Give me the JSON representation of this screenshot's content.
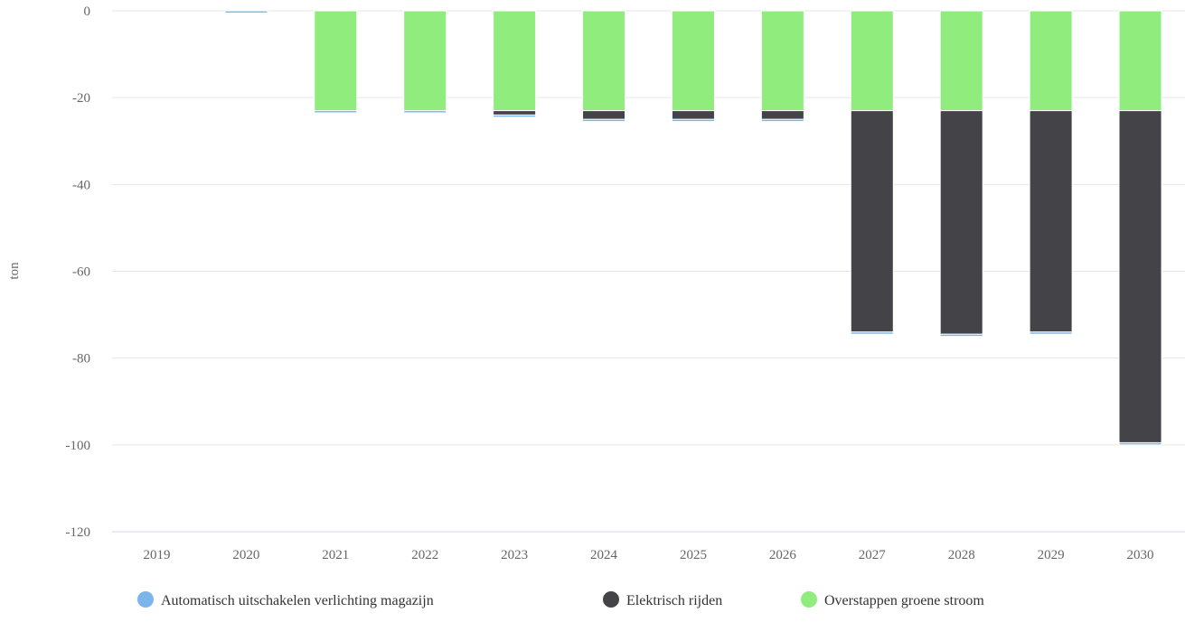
{
  "chart_data": {
    "type": "bar",
    "stacked": true,
    "categories": [
      "2019",
      "2020",
      "2021",
      "2022",
      "2023",
      "2024",
      "2025",
      "2026",
      "2027",
      "2028",
      "2029",
      "2030"
    ],
    "series": [
      {
        "name": "Overstappen groene stroom",
        "color": "#90ed7d",
        "values": [
          0,
          0,
          -23,
          -23,
          -23,
          -23,
          -23,
          -23,
          -23,
          -23,
          -23,
          -23
        ]
      },
      {
        "name": "Elektrisch rijden",
        "color": "#434348",
        "values": [
          0,
          0,
          0,
          0,
          -1,
          -2,
          -2,
          -2,
          -51,
          -51.5,
          -51,
          -76.5
        ]
      },
      {
        "name": "Automatisch uitschakelen verlichting magazijn",
        "color": "#7cb5ec",
        "values": [
          0,
          -0.5,
          -0.5,
          -0.5,
          -0.5,
          -0.5,
          -0.5,
          -0.5,
          -0.5,
          -0.5,
          -0.5,
          -0.5
        ]
      }
    ],
    "legend_order": [
      "Automatisch uitschakelen verlichting magazijn",
      "Elektrisch rijden",
      "Overstappen groene stroom"
    ],
    "yticks": [
      0,
      -20,
      -40,
      -60,
      -80,
      -100,
      -120
    ],
    "ylim": [
      -120,
      0
    ],
    "ylabel": "ton",
    "xlabel": "",
    "title": "",
    "grid": true,
    "legend_position": "bottom"
  }
}
